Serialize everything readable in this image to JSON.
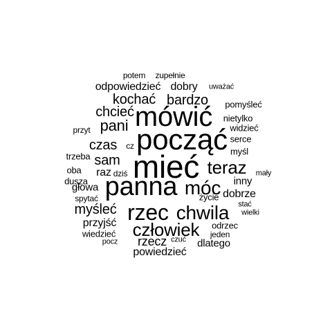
{
  "text_color": "#000000",
  "background": "#ffffff",
  "words": [
    "potem",
    "zupełnie",
    "odpowiedzieć",
    "dobry",
    "uważać",
    "kochać",
    "bardzo",
    "pomyśleć",
    "chcieć",
    "mówić",
    "nietylko",
    "pani",
    "przyt",
    "widzieć",
    "począć",
    "czas",
    "cz",
    "serce",
    "trzeba",
    "myśl",
    "sam",
    "mieć",
    "teraz",
    "oba",
    "raz",
    "dziś",
    "mały",
    "dusza",
    "panna",
    "móc",
    "inny",
    "głowa",
    "życie",
    "dobrze",
    "spytać",
    "stać",
    "myśleć",
    "rzec",
    "chwila",
    "wielki",
    "przyjść",
    "odrzec",
    "człowiek",
    "wiedzieć",
    "jeden",
    "pocz",
    "rzecz",
    "czuć",
    "dlatego",
    "powiedzieć"
  ]
}
